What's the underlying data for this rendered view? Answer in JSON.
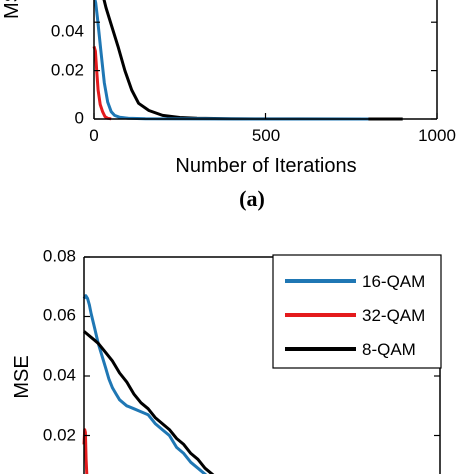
{
  "chart_data": [
    {
      "id": "top",
      "type": "line",
      "panel_label": "(a)",
      "xlabel": "Number of Iterations",
      "ylabel": "MS",
      "xlim": [
        0,
        1000
      ],
      "ylim": [
        0,
        0.05
      ],
      "x_ticks": [
        0,
        500,
        1000
      ],
      "x_tick_labels": [
        "0",
        "500",
        "1000"
      ],
      "y_ticks": [
        0,
        0.02,
        0.04
      ],
      "y_tick_labels": [
        "0",
        "0.02",
        "0.04"
      ],
      "series": [
        {
          "key": "8qam",
          "color": "#000000",
          "x": [
            20,
            28,
            35,
            50,
            70,
            90,
            110,
            130,
            160,
            200,
            250,
            300,
            400,
            600,
            800,
            900
          ],
          "y": [
            0.06,
            0.05,
            0.046,
            0.039,
            0.03,
            0.02,
            0.012,
            0.0065,
            0.0035,
            0.0015,
            0.0006,
            0.0003,
            0.0001,
            3e-05,
            2e-05,
            1e-05
          ]
        },
        {
          "key": "16qam",
          "color": "#1f77b4",
          "x": [
            0,
            5,
            10,
            20,
            30,
            40,
            50,
            60,
            75,
            100,
            150,
            300,
            500,
            800
          ],
          "y": [
            0.051,
            0.048,
            0.042,
            0.028,
            0.015,
            0.007,
            0.003,
            0.0015,
            0.0007,
            0.0003,
            0.0001,
            3e-05,
            1e-05,
            1e-05
          ]
        },
        {
          "key": "32qam",
          "color": "#e41a1c",
          "x": [
            0,
            4,
            8,
            12,
            18,
            25,
            32,
            40,
            50
          ],
          "y": [
            0.03,
            0.028,
            0.02,
            0.012,
            0.006,
            0.003,
            0.001,
            0.0003,
            0.0001
          ]
        }
      ]
    },
    {
      "id": "bottom",
      "type": "line",
      "ylabel": "MSE",
      "ylim": [
        0,
        0.08
      ],
      "xlim": [
        0,
        1000
      ],
      "y_ticks": [
        0.02,
        0.04,
        0.06,
        0.08
      ],
      "y_tick_labels": [
        "0.02",
        "0.04",
        "0.06",
        "0.08"
      ],
      "legend_position": "top-right",
      "series": [
        {
          "key": "16qam",
          "name": "16-QAM",
          "color": "#1f77b4",
          "x": [
            0,
            5,
            10,
            15,
            20,
            30,
            40,
            50,
            60,
            70,
            80,
            90,
            100,
            120,
            140,
            160,
            180,
            200,
            220,
            240,
            260,
            280,
            300,
            320,
            340,
            360,
            380,
            400
          ],
          "y": [
            0.066,
            0.067,
            0.066,
            0.064,
            0.061,
            0.056,
            0.051,
            0.047,
            0.043,
            0.039,
            0.036,
            0.034,
            0.032,
            0.03,
            0.029,
            0.028,
            0.027,
            0.024,
            0.022,
            0.02,
            0.016,
            0.014,
            0.011,
            0.009,
            0.007,
            0.005,
            0.004,
            0.003
          ]
        },
        {
          "key": "32qam",
          "name": "32-QAM",
          "color": "#e41a1c",
          "x": [
            0,
            2,
            4,
            6,
            8,
            10,
            15,
            20,
            30,
            40
          ],
          "y": [
            0.017,
            0.022,
            0.021,
            0.012,
            0.007,
            0.004,
            0.003,
            0.002,
            0.001,
            0.0005
          ]
        },
        {
          "key": "8qam",
          "name": "8-QAM",
          "color": "#000000",
          "x": [
            0,
            10,
            20,
            30,
            40,
            60,
            80,
            100,
            120,
            140,
            160,
            180,
            200,
            220,
            240,
            260,
            280,
            300,
            320,
            340,
            360,
            380,
            400
          ],
          "y": [
            0.055,
            0.054,
            0.053,
            0.052,
            0.051,
            0.048,
            0.045,
            0.041,
            0.038,
            0.034,
            0.031,
            0.029,
            0.026,
            0.024,
            0.022,
            0.019,
            0.017,
            0.014,
            0.012,
            0.009,
            0.007,
            0.005,
            0.003
          ]
        }
      ]
    }
  ]
}
